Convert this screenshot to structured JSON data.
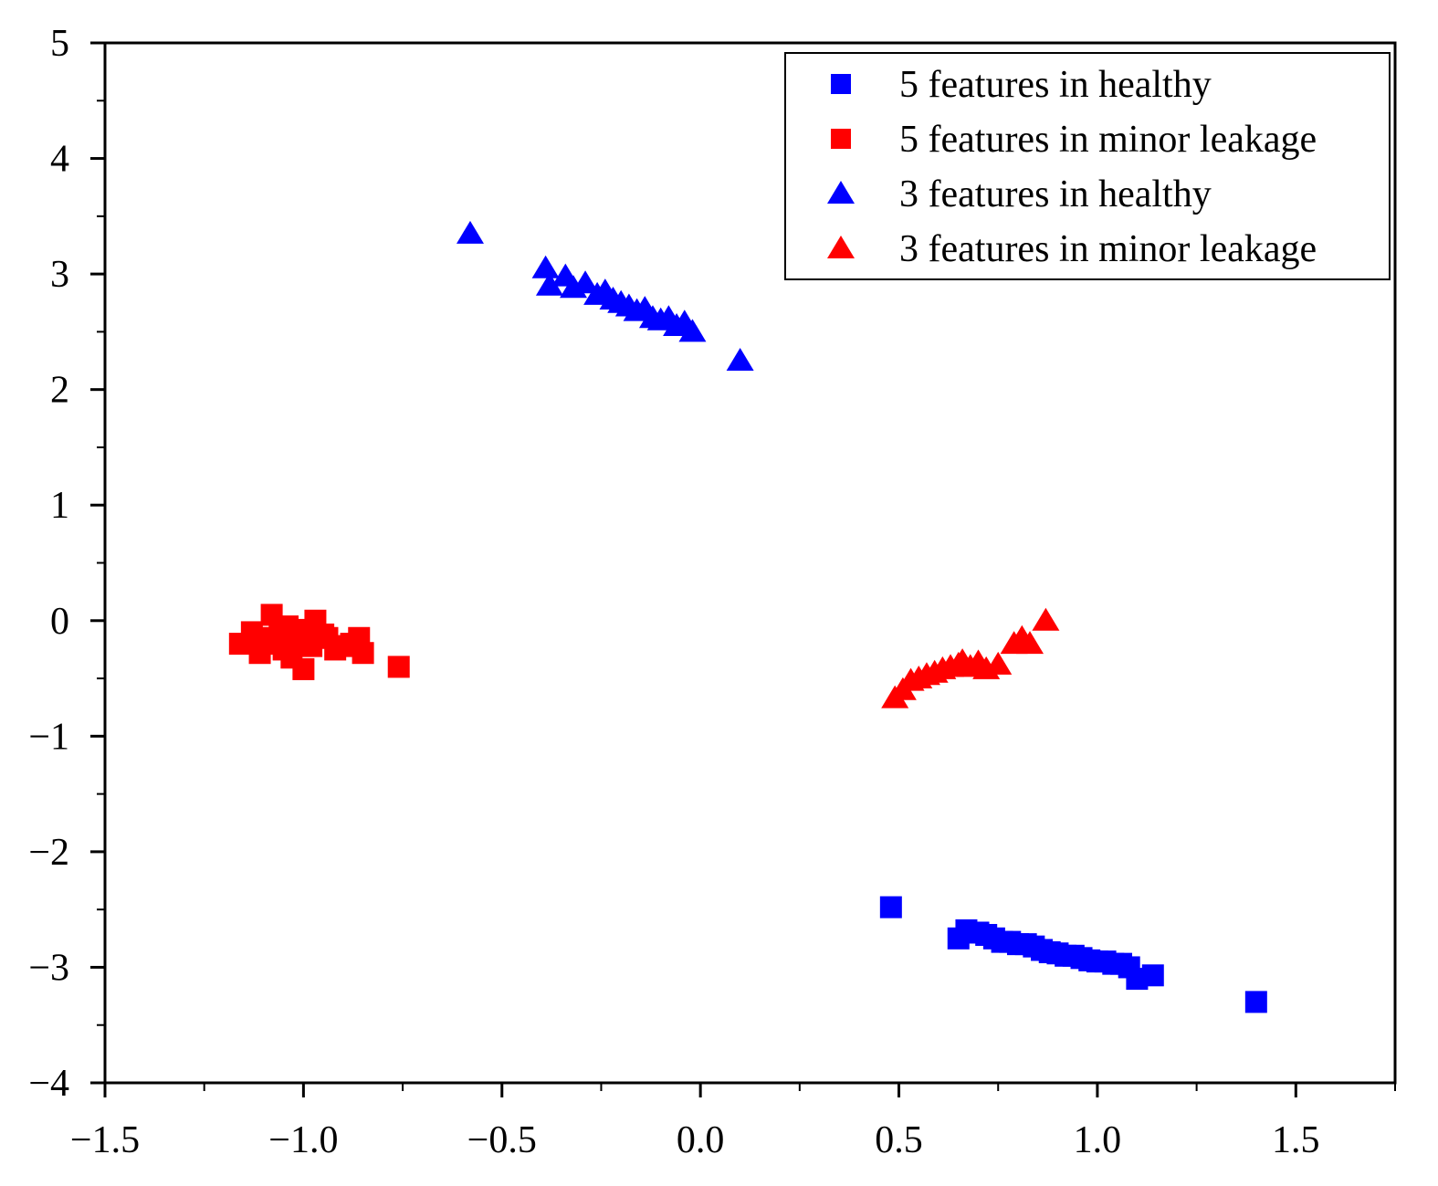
{
  "chart_data": {
    "type": "scatter",
    "title": "",
    "xlabel": "",
    "ylabel": "",
    "xlim": [
      -1.5,
      1.75
    ],
    "ylim": [
      -4,
      5
    ],
    "x_ticks": [
      -1.5,
      -1.0,
      -0.5,
      0.0,
      0.5,
      1.0,
      1.5
    ],
    "x_tick_labels": [
      "−1.5",
      "−1.0",
      "−0.5",
      "0.0",
      "0.5",
      "1.0",
      "1.5"
    ],
    "y_ticks": [
      5,
      4,
      3,
      2,
      1,
      0,
      -1,
      -2,
      -3,
      -4
    ],
    "y_tick_labels": [
      "5",
      "4",
      "3",
      "2",
      "1",
      "0",
      "−1",
      "−2",
      "−3",
      "−4"
    ],
    "legend_position": "top-right",
    "series": [
      {
        "name": "5 features in healthy",
        "marker": "square",
        "color": "#0000ff",
        "x": [
          0.48,
          0.65,
          0.67,
          0.7,
          0.72,
          0.74,
          0.76,
          0.78,
          0.8,
          0.82,
          0.84,
          0.86,
          0.88,
          0.9,
          0.92,
          0.94,
          0.96,
          0.98,
          1.0,
          1.02,
          1.04,
          1.06,
          1.08,
          1.1,
          1.14,
          1.4
        ],
        "y": [
          -2.48,
          -2.75,
          -2.68,
          -2.7,
          -2.72,
          -2.75,
          -2.78,
          -2.78,
          -2.8,
          -2.8,
          -2.82,
          -2.85,
          -2.87,
          -2.88,
          -2.9,
          -2.9,
          -2.92,
          -2.94,
          -2.95,
          -2.95,
          -2.97,
          -2.97,
          -3.0,
          -3.1,
          -3.07,
          -3.3
        ]
      },
      {
        "name": "5 features in minor leakage",
        "marker": "square",
        "color": "#ff0000",
        "x": [
          -1.16,
          -1.13,
          -1.11,
          -1.1,
          -1.08,
          -1.07,
          -1.06,
          -1.05,
          -1.04,
          -1.03,
          -1.02,
          -1.0,
          -0.99,
          -0.98,
          -0.97,
          -0.95,
          -0.94,
          -0.92,
          -0.9,
          -0.88,
          -0.86,
          -0.85,
          -0.76
        ],
        "y": [
          -0.2,
          -0.1,
          -0.28,
          -0.15,
          0.05,
          -0.2,
          -0.12,
          -0.25,
          -0.05,
          -0.32,
          -0.18,
          -0.42,
          -0.08,
          -0.22,
          0.0,
          -0.12,
          -0.15,
          -0.25,
          -0.22,
          -0.2,
          -0.15,
          -0.28,
          -0.4
        ]
      },
      {
        "name": "3 features in healthy",
        "marker": "triangle",
        "color": "#0000ff",
        "x": [
          -0.58,
          -0.39,
          -0.38,
          -0.34,
          -0.32,
          -0.29,
          -0.26,
          -0.24,
          -0.22,
          -0.2,
          -0.18,
          -0.16,
          -0.14,
          -0.12,
          -0.1,
          -0.08,
          -0.06,
          -0.04,
          -0.02,
          0.1
        ],
        "y": [
          3.35,
          3.05,
          2.9,
          2.98,
          2.88,
          2.92,
          2.82,
          2.85,
          2.78,
          2.75,
          2.72,
          2.68,
          2.7,
          2.62,
          2.6,
          2.62,
          2.55,
          2.58,
          2.5,
          2.25
        ]
      },
      {
        "name": "3 features in minor leakage",
        "marker": "triangle",
        "color": "#ff0000",
        "x": [
          0.49,
          0.51,
          0.53,
          0.55,
          0.57,
          0.59,
          0.61,
          0.63,
          0.65,
          0.66,
          0.68,
          0.7,
          0.72,
          0.75,
          0.79,
          0.81,
          0.83,
          0.87
        ],
        "y": [
          -0.67,
          -0.6,
          -0.52,
          -0.5,
          -0.47,
          -0.45,
          -0.42,
          -0.4,
          -0.38,
          -0.35,
          -0.4,
          -0.36,
          -0.42,
          -0.38,
          -0.2,
          -0.15,
          -0.2,
          0.0
        ]
      }
    ]
  }
}
